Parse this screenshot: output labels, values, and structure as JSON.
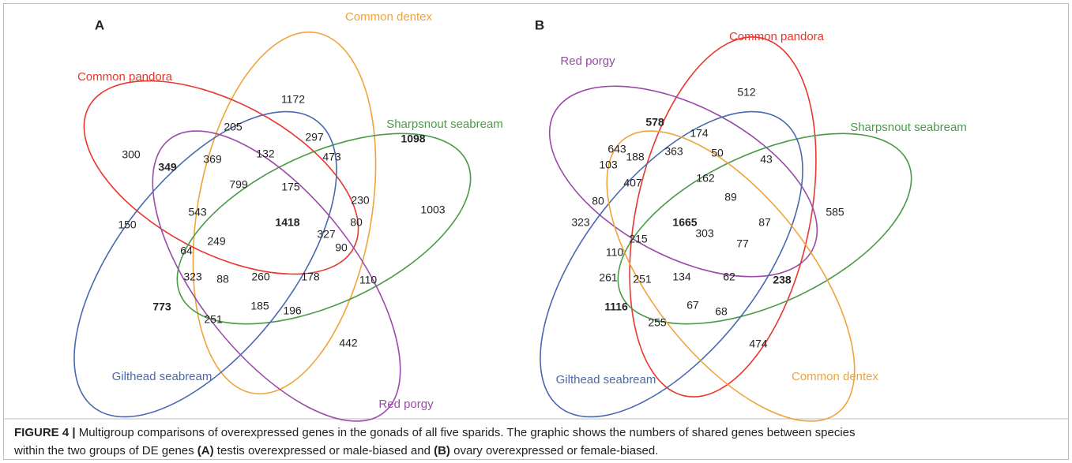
{
  "panels": [
    {
      "label": "A",
      "sets": [
        {
          "name": "Common dentex",
          "color": "#f0a33a"
        },
        {
          "name": "Common pandora",
          "color": "#e8372e"
        },
        {
          "name": "Sharpsnout seabream",
          "color": "#4a9a4a"
        },
        {
          "name": "Gilthead seabream",
          "color": "#4a68b0"
        },
        {
          "name": "Red porgy",
          "color": "#9a4aa8"
        }
      ],
      "regions": [
        {
          "count": 1172
        },
        {
          "count": 205
        },
        {
          "count": 300
        },
        {
          "count": 297
        },
        {
          "count": 1098,
          "bold": true
        },
        {
          "count": 349,
          "bold": true
        },
        {
          "count": 369
        },
        {
          "count": 132
        },
        {
          "count": 473
        },
        {
          "count": 799
        },
        {
          "count": 175
        },
        {
          "count": 543
        },
        {
          "count": 230
        },
        {
          "count": 1003
        },
        {
          "count": 150
        },
        {
          "count": 1418,
          "bold": true
        },
        {
          "count": 80
        },
        {
          "count": 249
        },
        {
          "count": 327
        },
        {
          "count": 64
        },
        {
          "count": 90
        },
        {
          "count": 323
        },
        {
          "count": 88
        },
        {
          "count": 260
        },
        {
          "count": 178
        },
        {
          "count": 110
        },
        {
          "count": 773,
          "bold": true
        },
        {
          "count": 185
        },
        {
          "count": 196
        },
        {
          "count": 251
        },
        {
          "count": 442
        }
      ]
    },
    {
      "label": "B",
      "sets": [
        {
          "name": "Common pandora",
          "color": "#e8372e"
        },
        {
          "name": "Red porgy",
          "color": "#9a4aa8"
        },
        {
          "name": "Sharpsnout seabream",
          "color": "#4a9a4a"
        },
        {
          "name": "Gilthead seabream",
          "color": "#4a68b0"
        },
        {
          "name": "Common dentex",
          "color": "#f0a33a"
        }
      ],
      "regions": [
        {
          "count": 512
        },
        {
          "count": 578,
          "bold": true
        },
        {
          "count": 174
        },
        {
          "count": 643
        },
        {
          "count": 363
        },
        {
          "count": 50
        },
        {
          "count": 43
        },
        {
          "count": 103
        },
        {
          "count": 188
        },
        {
          "count": 407
        },
        {
          "count": 162
        },
        {
          "count": 89
        },
        {
          "count": 80
        },
        {
          "count": 1665,
          "bold": true
        },
        {
          "count": 87
        },
        {
          "count": 585
        },
        {
          "count": 323
        },
        {
          "count": 303
        },
        {
          "count": 215
        },
        {
          "count": 77
        },
        {
          "count": 110
        },
        {
          "count": 261
        },
        {
          "count": 251
        },
        {
          "count": 134
        },
        {
          "count": 62
        },
        {
          "count": 238,
          "bold": true
        },
        {
          "count": 1116,
          "bold": true
        },
        {
          "count": 67
        },
        {
          "count": 68
        },
        {
          "count": 255
        },
        {
          "count": 474
        }
      ]
    }
  ],
  "caption": {
    "lines": [
      [
        {
          "text": "FIGURE 4 |",
          "bold": true
        },
        {
          "text": " Multigroup comparisons of overexpressed genes in the gonads of all five sparids. The graphic shows the numbers of shared genes between species"
        }
      ],
      [
        {
          "text": "within the two groups of DE genes "
        },
        {
          "text": "(A)",
          "bold": true
        },
        {
          "text": " testis overexpressed or male-biased and "
        },
        {
          "text": "(B)",
          "bold": true
        },
        {
          "text": " ovary overexpressed or female-biased."
        }
      ]
    ]
  }
}
